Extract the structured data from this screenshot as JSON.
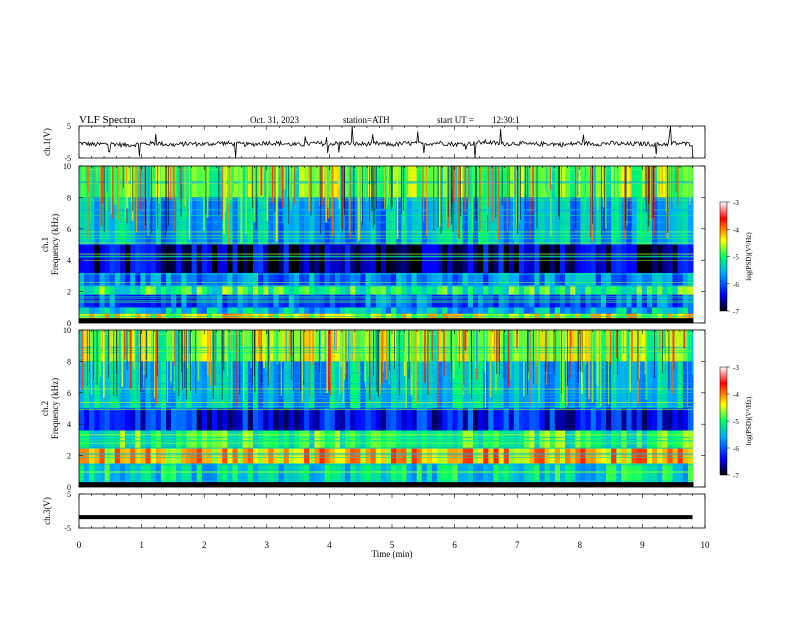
{
  "header": {
    "title": "VLF Spectra",
    "date": "Oct. 31, 2023",
    "station": "station=ATH",
    "start_label": "start UT =",
    "start_time": "12:30:1"
  },
  "colors": {
    "background": "#ffffff",
    "axis": "#000000",
    "colormap": [
      "#000000",
      "#0000ff",
      "#00aaff",
      "#00ff66",
      "#ffff00",
      "#ff0000",
      "#ffffff"
    ]
  },
  "chart_data": [
    {
      "type": "line",
      "panel": "ch1-waveform",
      "ylabel": "ch.1(V)",
      "ylim": [
        -5,
        5
      ],
      "yticks": [
        {
          "value": 5,
          "label": "5"
        },
        {
          "value": -5,
          "label": "-5"
        }
      ],
      "xlim": [
        0,
        10
      ],
      "x": [
        0,
        0.25,
        0.5,
        0.75,
        1,
        1.25,
        1.5,
        1.75,
        2,
        2.25,
        2.5,
        2.75,
        3,
        3.25,
        3.5,
        3.75,
        4,
        4.25,
        4.5,
        4.75,
        5,
        5.25,
        5.5,
        5.75,
        6,
        6.25,
        6.5,
        6.75,
        7,
        7.25,
        7.5,
        7.75,
        8,
        8.25,
        8.5,
        8.75,
        9,
        9.25,
        9.5,
        9.75
      ],
      "y": [
        -0.3,
        -0.8,
        -0.5,
        -1.0,
        -0.6,
        -0.4,
        -0.9,
        -0.5,
        -0.7,
        -0.3,
        -0.6,
        -0.8,
        -0.2,
        -0.5,
        -0.9,
        -0.4,
        -0.6,
        -0.3,
        -0.7,
        -0.5,
        -0.8,
        -0.4,
        -0.6,
        -0.2,
        -0.7,
        -0.5,
        0.0,
        -0.6,
        -0.4,
        -0.8,
        -0.5,
        -0.9,
        -0.3,
        -0.6,
        -0.4,
        -0.7,
        -0.5,
        -0.8,
        -0.4,
        -0.6
      ]
    },
    {
      "type": "heatmap",
      "panel": "ch1-spectrogram",
      "ylabel_channel": "ch.1",
      "ylabel": "Frequency (kHz)",
      "ylim": [
        0,
        10
      ],
      "yticks": [
        0,
        2,
        4,
        6,
        8,
        10
      ],
      "xlim": [
        0,
        9.8
      ],
      "colorbar": {
        "label": "log(PSD)(V²/Hz)",
        "range": [
          -7,
          -3
        ],
        "ticks": [
          -3,
          -4,
          -5,
          -6,
          -7
        ]
      },
      "frequency_bands_kHz": [
        {
          "from": 0,
          "to": 0.3,
          "log_psd": -7.0
        },
        {
          "from": 0.3,
          "to": 0.6,
          "log_psd": -4.5
        },
        {
          "from": 0.6,
          "to": 1.0,
          "log_psd": -5.5
        },
        {
          "from": 1.0,
          "to": 1.8,
          "log_psd": -6.0
        },
        {
          "from": 1.8,
          "to": 2.4,
          "log_psd": -5.0
        },
        {
          "from": 2.4,
          "to": 3.2,
          "log_psd": -5.8
        },
        {
          "from": 3.2,
          "to": 5.0,
          "log_psd": -6.6
        },
        {
          "from": 5.0,
          "to": 8.0,
          "log_psd": -5.6
        },
        {
          "from": 8.0,
          "to": 10.0,
          "log_psd": -4.8
        }
      ]
    },
    {
      "type": "heatmap",
      "panel": "ch2-spectrogram",
      "ylabel_channel": "ch.2",
      "ylabel": "Frequency (kHz)",
      "ylim": [
        0,
        10
      ],
      "yticks": [
        0,
        2,
        4,
        6,
        8,
        10
      ],
      "xlim": [
        0,
        9.8
      ],
      "colorbar": {
        "label": "log(PSD)(V²/Hz)",
        "range": [
          -7,
          -3
        ],
        "ticks": [
          -3,
          -4,
          -5,
          -6,
          -7
        ]
      },
      "frequency_bands_kHz": [
        {
          "from": 0,
          "to": 0.3,
          "log_psd": -7.0
        },
        {
          "from": 0.3,
          "to": 1.5,
          "log_psd": -5.3
        },
        {
          "from": 1.5,
          "to": 2.5,
          "log_psd": -4.2
        },
        {
          "from": 2.5,
          "to": 3.6,
          "log_psd": -5.0
        },
        {
          "from": 3.6,
          "to": 5.0,
          "log_psd": -6.3
        },
        {
          "from": 5.0,
          "to": 8.0,
          "log_psd": -5.5
        },
        {
          "from": 8.0,
          "to": 10.0,
          "log_psd": -4.7
        }
      ]
    },
    {
      "type": "line",
      "panel": "ch3-waveform",
      "ylabel": "ch.3(V)",
      "ylim": [
        -5,
        5
      ],
      "yticks": [
        {
          "value": 5,
          "label": "5"
        },
        {
          "value": -5,
          "label": "-5"
        }
      ],
      "xlim": [
        0,
        10
      ],
      "x": [
        0,
        9.8
      ],
      "y": [
        -1.8,
        -1.8
      ]
    }
  ],
  "xaxis": {
    "label": "Time (min)",
    "range": [
      0,
      10
    ],
    "ticks": [
      "0",
      "1",
      "2",
      "3",
      "4",
      "5",
      "6",
      "7",
      "8",
      "9",
      "10"
    ]
  }
}
